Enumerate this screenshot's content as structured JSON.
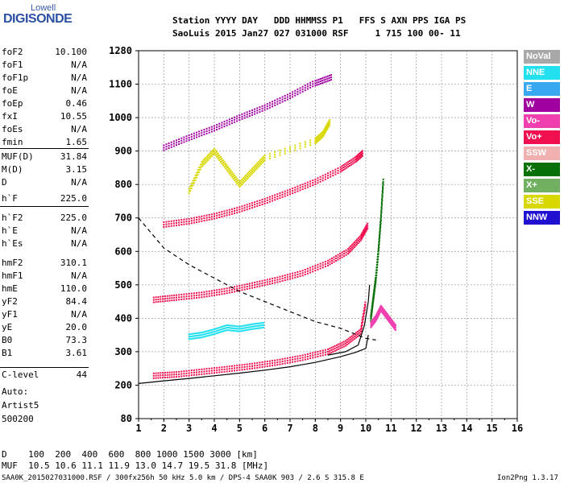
{
  "logo": {
    "line1": "Lowell",
    "line2": "DIGISONDE"
  },
  "header": {
    "line1": "Station YYYY DAY   DDD HHMMSS P1   FFS S AXN PPS IGA PS",
    "line2": "SaoLuis 2015 Jan27 027 031000 RSF     1 715 100 00- 11"
  },
  "params": [
    {
      "k": "foF2",
      "v": "10.100"
    },
    {
      "k": "foF1",
      "v": "N/A"
    },
    {
      "k": "foF1p",
      "v": "N/A"
    },
    {
      "k": "foE",
      "v": "N/A"
    },
    {
      "k": "foEp",
      "v": "0.46"
    },
    {
      "k": "fxI",
      "v": "10.55"
    },
    {
      "k": "foEs",
      "v": "N/A"
    },
    {
      "k": "fmin",
      "v": "1.65"
    },
    {
      "k": "MUF(D)",
      "v": "31.84"
    },
    {
      "k": "M(D)",
      "v": "3.15"
    },
    {
      "k": "D",
      "v": "N/A"
    },
    {
      "k": "h`F",
      "v": "225.0"
    },
    {
      "k": "h`F2",
      "v": "225.0"
    },
    {
      "k": "h`E",
      "v": "N/A"
    },
    {
      "k": "h`Es",
      "v": "N/A"
    },
    {
      "k": "hmF2",
      "v": "310.1"
    },
    {
      "k": "hmF1",
      "v": "N/A"
    },
    {
      "k": "hmE",
      "v": "110.0"
    },
    {
      "k": "yF2",
      "v": "84.4"
    },
    {
      "k": "yF1",
      "v": "N/A"
    },
    {
      "k": "yE",
      "v": "20.0"
    },
    {
      "k": "B0",
      "v": "73.3"
    },
    {
      "k": "B1",
      "v": "3.61"
    },
    {
      "k": "C-level",
      "v": "44"
    }
  ],
  "auto": {
    "line1": "Auto:",
    "line2": "Artist5",
    "line3": "500200"
  },
  "legend": [
    {
      "label": "NoVal",
      "color": "#a8a8a8"
    },
    {
      "label": "NNE",
      "color": "#22e0f0"
    },
    {
      "label": "E",
      "color": "#3aa8f0"
    },
    {
      "label": "W",
      "color": "#a000a0"
    },
    {
      "label": "Vo-",
      "color": "#f040b0"
    },
    {
      "label": "Vo+",
      "color": "#f01050"
    },
    {
      "label": "SSW",
      "color": "#f0b0b0"
    },
    {
      "label": "X-",
      "color": "#087008"
    },
    {
      "label": "X+",
      "color": "#70b060"
    },
    {
      "label": "SSE",
      "color": "#d8d800"
    },
    {
      "label": "NNW",
      "color": "#2010d0"
    }
  ],
  "footer": {
    "d_line": "D    100  200  400  600  800 1000 1500 3000 [km]",
    "muf_line": "MUF  10.5 10.6 11.1 11.9 13.0 14.7 19.5 31.8 [MHz]",
    "info": "SAA0K_2015027031000.RSF / 300fx256h 50 kHz 5.0 km / DPS-4 SAA0K 903 / 2.6 S 315.8 E",
    "version": "Ion2Png 1.3.17"
  },
  "chart_data": {
    "type": "scatter",
    "x_ticks": [
      "1",
      "2",
      "3",
      "4",
      "5",
      "6",
      "7",
      "8",
      "9",
      "10",
      "11",
      "12",
      "13",
      "14",
      "15",
      "16"
    ],
    "y_ticks": [
      "80",
      "200",
      "300",
      "400",
      "500",
      "600",
      "700",
      "800",
      "900",
      "1000",
      "1100",
      "1280"
    ],
    "xlim": [
      1,
      16
    ],
    "ylim": [
      80,
      1280
    ],
    "y_scale": "nonlinear",
    "grid": true,
    "traces": [
      {
        "name": "Vo+",
        "color": "#f01050",
        "x": [
          1.6,
          2.5,
          3.5,
          4.5,
          5.5,
          6.5,
          7.5,
          8.5,
          9.2,
          9.8,
          10.0
        ],
        "y": [
          228,
          232,
          240,
          248,
          257,
          268,
          282,
          300,
          325,
          360,
          450
        ]
      },
      {
        "name": "Vo+",
        "color": "#f01050",
        "x": [
          1.6,
          2.5,
          3.5,
          4.5,
          5.5,
          6.5,
          7.5,
          8.5,
          9.3,
          9.8,
          10.1
        ],
        "y": [
          455,
          462,
          470,
          482,
          498,
          515,
          535,
          565,
          600,
          640,
          680
        ]
      },
      {
        "name": "Vo+",
        "color": "#f01050",
        "x": [
          2.0,
          3.0,
          4.0,
          5.0,
          6.0,
          7.0,
          8.0,
          9.0,
          9.6,
          9.9
        ],
        "y": [
          680,
          690,
          705,
          725,
          750,
          778,
          808,
          845,
          875,
          895
        ]
      },
      {
        "name": "W",
        "color": "#a000a0",
        "x": [
          2.0,
          3.0,
          4.0,
          5.0,
          6.0,
          7.0,
          8.0,
          8.7
        ],
        "y": [
          910,
          940,
          968,
          1000,
          1030,
          1065,
          1105,
          1140
        ]
      },
      {
        "name": "X-",
        "color": "#087008",
        "x": [
          10.2,
          10.3,
          10.4,
          10.5,
          10.6,
          10.7
        ],
        "y": [
          400,
          460,
          520,
          600,
          700,
          820
        ]
      },
      {
        "name": "SSE",
        "color": "#d8d800",
        "x": [
          3.0,
          3.5,
          4.0,
          4.5,
          5.0,
          5.5,
          6.0,
          8.0,
          8.3,
          8.6
        ],
        "y": [
          780,
          860,
          900,
          850,
          800,
          840,
          880,
          930,
          950,
          990
        ]
      },
      {
        "name": "NNE",
        "color": "#22e0f0",
        "x": [
          3.0,
          3.5,
          4.0,
          4.5,
          5.0,
          5.5,
          6.0
        ],
        "y": [
          345,
          350,
          360,
          372,
          368,
          375,
          380
        ]
      },
      {
        "name": "Vo-",
        "color": "#f040b0",
        "x": [
          10.2,
          10.4,
          10.6,
          10.8,
          11.0,
          11.2
        ],
        "y": [
          380,
          400,
          430,
          410,
          390,
          370
        ]
      }
    ],
    "curves": [
      {
        "name": "profile",
        "style": "solid",
        "x": [
          1.0,
          2.0,
          3.0,
          4.0,
          5.0,
          6.0,
          7.0,
          8.0,
          9.0,
          9.6,
          10.0,
          10.1
        ],
        "y": [
          205,
          213,
          220,
          228,
          236,
          245,
          255,
          268,
          285,
          298,
          310,
          350
        ]
      },
      {
        "name": "profile-upper",
        "style": "solid",
        "x": [
          8.5,
          9.2,
          9.7,
          9.95,
          10.1,
          10.15
        ],
        "y": [
          290,
          300,
          320,
          380,
          450,
          500
        ]
      },
      {
        "name": "virtual-height",
        "style": "dashed",
        "x": [
          1.0,
          2.0,
          3.0,
          4.0,
          5.0,
          6.0,
          7.0,
          8.0,
          9.0,
          10.0,
          10.4
        ],
        "y": [
          700,
          610,
          560,
          520,
          480,
          450,
          420,
          390,
          370,
          340,
          335
        ]
      }
    ]
  }
}
